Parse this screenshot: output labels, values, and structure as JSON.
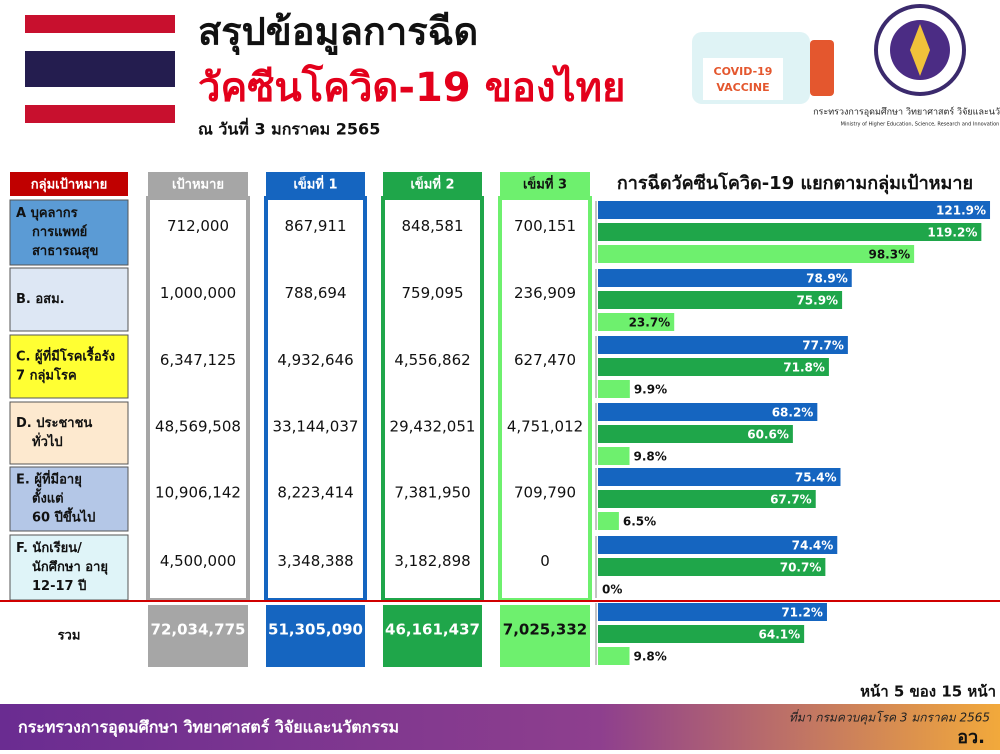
{
  "header": {
    "title_line1": "สรุปข้อมูลการฉีด",
    "title_line2": "วัคซีนโควิด-19 ของไทย",
    "date": "ณ วันที่ 3 มกราคม 2565",
    "vaccine_label": [
      "COVID-19",
      "VACCINE"
    ],
    "ministry_th": "กระทรวงการอุดมศึกษา วิทยาศาสตร์ วิจัยและนวัตกรรม",
    "ministry_en": "Ministry of Higher Education, Science, Research and Innovation"
  },
  "table": {
    "columns": [
      "กลุ่มเป้าหมาย",
      "เป้าหมาย",
      "เข็มที่ 1",
      "เข็มที่ 2",
      "เข็มที่ 3"
    ],
    "rows": [
      {
        "group": [
          "A บุคลากร",
          "การแพทย์",
          "สาธารณสุข"
        ],
        "cells": [
          "712,000",
          "867,911",
          "848,581",
          "700,151"
        ]
      },
      {
        "group": [
          "B. อสม."
        ],
        "cells": [
          "1,000,000",
          "788,694",
          "759,095",
          "236,909"
        ]
      },
      {
        "group": [
          "C. ผู้ที่มีโรคเรื้อรัง",
          "7 กลุ่มโรค"
        ],
        "cells": [
          "6,347,125",
          "4,932,646",
          "4,556,862",
          "627,470"
        ]
      },
      {
        "group": [
          "D. ประชาชน",
          "ทั่วไป"
        ],
        "cells": [
          "48,569,508",
          "33,144,037",
          "29,432,051",
          "4,751,012"
        ]
      },
      {
        "group": [
          "E. ผู้ที่มีอายุ",
          "ตั้งแต่",
          "60 ปีขึ้นไป"
        ],
        "cells": [
          "10,906,142",
          "8,223,414",
          "7,381,950",
          "709,790"
        ]
      },
      {
        "group": [
          "F. นักเรียน/",
          "นักศึกษา อายุ",
          "12-17 ปี"
        ],
        "cells": [
          "4,500,000",
          "3,348,388",
          "3,182,898",
          "0"
        ]
      },
      {
        "group": [
          "รวม"
        ],
        "cells": [
          "72,034,775",
          "51,305,090",
          "46,161,437",
          "7,025,332"
        ]
      }
    ]
  },
  "chart_data": {
    "type": "hbar",
    "title": "การฉีดวัคซีนโควิด-19 แยกตามกลุ่มเป้าหมาย",
    "categories": [
      null,
      null,
      null,
      null,
      null,
      null,
      null
    ],
    "xlim": [
      0,
      125
    ],
    "series": [
      {
        "color": "#1565c0",
        "values": [
          121.9,
          78.9,
          77.7,
          68.2,
          75.4,
          74.4,
          71.2
        ],
        "value_labels": [
          "121.9%",
          "78.9%",
          "77.7%",
          "68.2%",
          "75.4%",
          "74.4%",
          "71.2%"
        ]
      },
      {
        "color": "#1fa64a",
        "values": [
          119.2,
          75.9,
          71.8,
          60.6,
          67.7,
          70.7,
          64.1
        ],
        "value_labels": [
          "119.2%",
          "75.9%",
          "71.8%",
          "60.6%",
          "67.7%",
          "70.7%",
          "64.1%"
        ]
      },
      {
        "color": "#6ef06e",
        "values": [
          98.3,
          23.7,
          9.9,
          9.8,
          6.5,
          0,
          9.8
        ],
        "value_labels": [
          "98.3%",
          "23.7%",
          "9.9%",
          "9.8%",
          "6.5%",
          "0%",
          "9.8%"
        ]
      }
    ]
  },
  "footer": {
    "page": "หน้า 5 ของ 15 หน้า",
    "ministry": "กระทรวงการอุดมศึกษา วิทยาศาสตร์ วิจัยและนวัตกรรม",
    "source": "ที่มา กรมควบคุมโรค 3 มกราคม 2565",
    "abbr": "อว."
  }
}
